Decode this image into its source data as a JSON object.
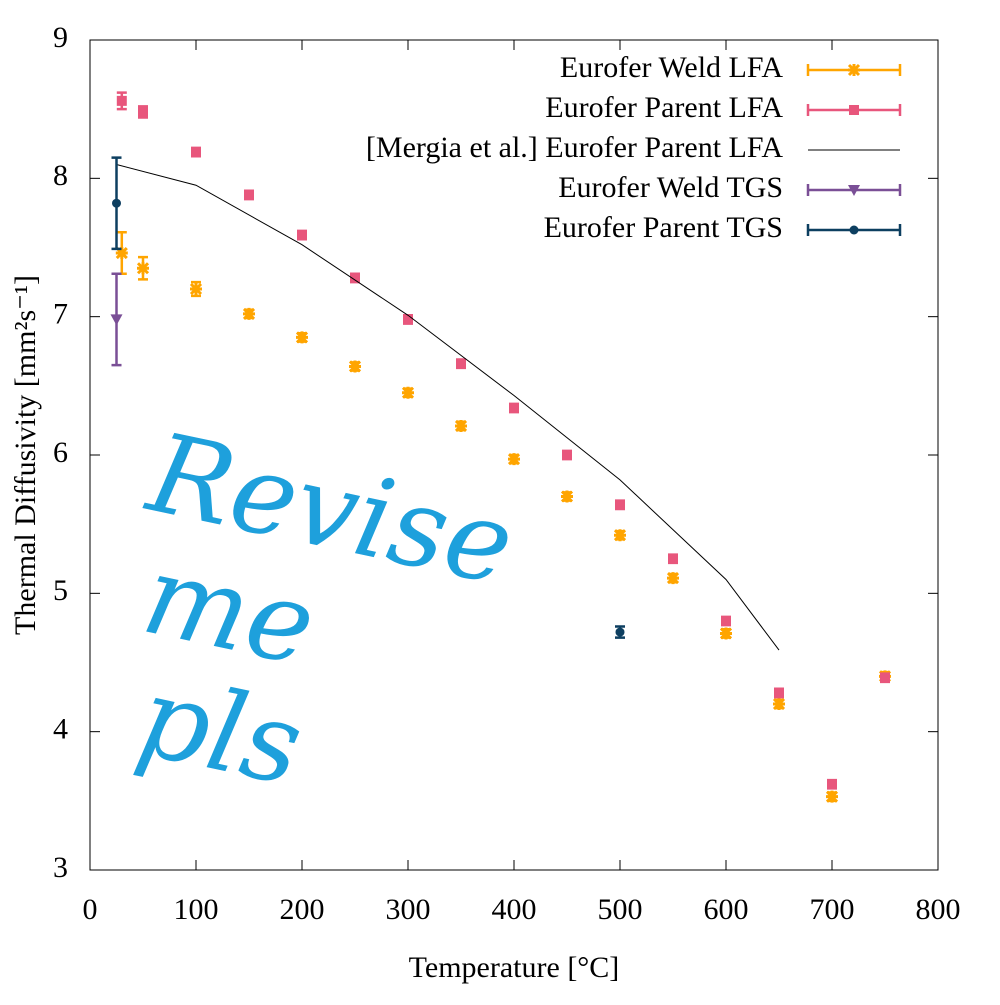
{
  "chart_data": {
    "type": "scatter",
    "xlabel": "Temperature [°C]",
    "ylabel": "Thermal Diffusivity [mm²s⁻¹]",
    "annotation": "Revise me pls",
    "annotation_color": "#1ea0dc",
    "xlim": [
      0,
      800
    ],
    "xticks": [
      0,
      100,
      200,
      300,
      400,
      500,
      600,
      700,
      800
    ],
    "ylim": [
      3,
      9
    ],
    "yticks": [
      3,
      4,
      5,
      6,
      7,
      8,
      9
    ],
    "legend": "top-right",
    "series": [
      {
        "name": "Eurofer Weld LFA",
        "color": "#ffa500",
        "marker": "star",
        "x": [
          30,
          50,
          100,
          150,
          200,
          250,
          300,
          350,
          400,
          450,
          500,
          550,
          600,
          650,
          700,
          750
        ],
        "values": [
          7.46,
          7.35,
          7.2,
          7.02,
          6.85,
          6.64,
          6.45,
          6.21,
          5.97,
          5.7,
          5.42,
          5.11,
          4.71,
          4.2,
          3.53,
          4.4
        ],
        "errors": [
          0.15,
          0.08,
          0.05,
          0.03,
          0.03,
          0.03,
          0.03,
          0.03,
          0.03,
          0.03,
          0.03,
          0.03,
          0.03,
          0.03,
          0.03,
          0.03
        ]
      },
      {
        "name": "Eurofer Parent LFA",
        "color": "#e8567c",
        "marker": "square",
        "x": [
          30,
          50,
          100,
          150,
          200,
          250,
          300,
          350,
          400,
          450,
          500,
          550,
          600,
          650,
          700,
          750
        ],
        "values": [
          8.56,
          8.48,
          8.19,
          7.88,
          7.59,
          7.28,
          6.98,
          6.66,
          6.34,
          6.0,
          5.64,
          5.25,
          4.8,
          4.28,
          3.62,
          4.39
        ],
        "errors": [
          0.06,
          0.04,
          0.03,
          0.03,
          0.03,
          0.03,
          0.03,
          0.03,
          0.03,
          0.03,
          0.03,
          0.03,
          0.03,
          0.03,
          0.03,
          0.03
        ]
      },
      {
        "name": "[Mergia et al.] Eurofer Parent LFA",
        "color": "#000000",
        "marker": "line",
        "x": [
          25,
          100,
          200,
          300,
          400,
          500,
          600,
          650
        ],
        "values": [
          8.1,
          7.95,
          7.52,
          7.01,
          6.43,
          5.82,
          5.1,
          4.59
        ]
      },
      {
        "name": "Eurofer Weld TGS",
        "color": "#7a4f96",
        "marker": "triangle",
        "x": [
          25
        ],
        "values": [
          6.98
        ],
        "errors": [
          0.33
        ]
      },
      {
        "name": "Eurofer Parent TGS",
        "color": "#0d3f60",
        "marker": "circle",
        "x": [
          25,
          500
        ],
        "values": [
          7.82,
          4.72
        ],
        "errors": [
          0.33,
          0.04
        ]
      }
    ]
  }
}
